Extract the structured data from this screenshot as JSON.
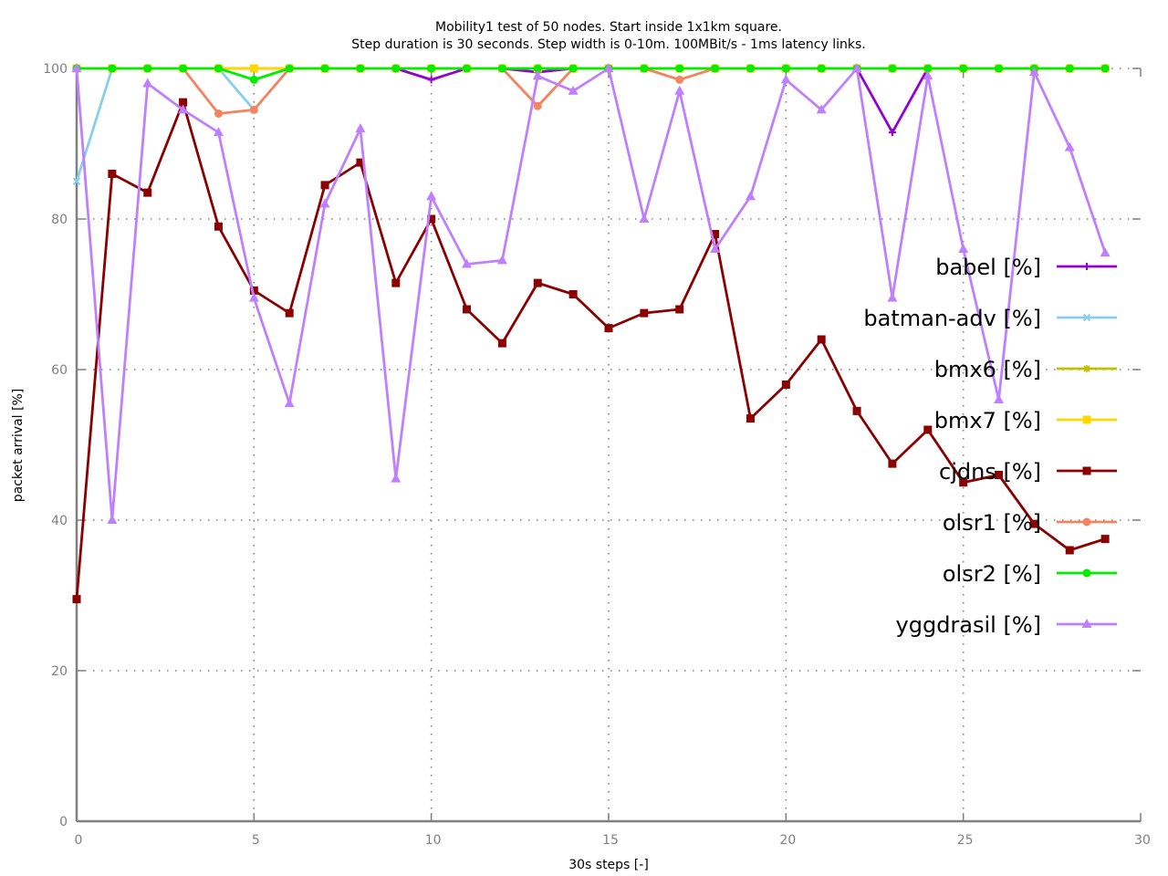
{
  "chart_data": {
    "type": "line",
    "title": [
      "Mobility1 test of 50 nodes. Start inside 1x1km square.",
      "Step duration is 30 seconds. Step width is 0-10m. 100MBit/s - 1ms latency links."
    ],
    "xlabel": "30s steps [-]",
    "ylabel": "packet arrival [%]",
    "xlim": [
      0,
      30
    ],
    "ylim": [
      0,
      100
    ],
    "x_ticks": [
      "0",
      "5",
      "10",
      "15",
      "20",
      "25",
      "30"
    ],
    "y_ticks": [
      "0",
      "20",
      "40",
      "60",
      "80",
      "100"
    ],
    "grid": true,
    "legend_position": "right",
    "series": [
      {
        "name": "babel [%]",
        "color": "#9400d3",
        "marker": "plus",
        "x": [
          0,
          1,
          2,
          3,
          4,
          5,
          6,
          7,
          8,
          9,
          10,
          11,
          12,
          13,
          14,
          15,
          16,
          17,
          18,
          19,
          20,
          21,
          22,
          23,
          24,
          25,
          26,
          27,
          28,
          29
        ],
        "y": [
          100,
          100,
          100,
          100,
          100,
          100,
          100,
          100,
          100,
          100,
          98.5,
          100,
          100,
          99.5,
          100,
          100,
          100,
          100,
          100,
          100,
          100,
          100,
          100,
          91.5,
          100,
          100,
          100,
          100,
          100,
          100
        ]
      },
      {
        "name": "batman-adv [%]",
        "color": "#87ceeb",
        "marker": "cross",
        "x": [
          0,
          1,
          2,
          3,
          4,
          5,
          6,
          7,
          8,
          9,
          10,
          11,
          12,
          13,
          14,
          15,
          16,
          17,
          18,
          19,
          20,
          21,
          22,
          23,
          24,
          25,
          26,
          27,
          28,
          29
        ],
        "y": [
          85,
          100,
          100,
          100,
          100,
          94.5,
          100,
          100,
          100,
          100,
          100,
          100,
          100,
          100,
          100,
          100,
          100,
          100,
          100,
          100,
          100,
          100,
          100,
          100,
          100,
          100,
          100,
          100,
          100,
          100
        ]
      },
      {
        "name": "bmx6 [%]",
        "color": "#c0c000",
        "marker": "star",
        "x": [
          0,
          1,
          2,
          3,
          4,
          5,
          6,
          7,
          8,
          9,
          10,
          11,
          12,
          13,
          14,
          15,
          16,
          17,
          18,
          19,
          20,
          21,
          22,
          23,
          24,
          25,
          26,
          27,
          28,
          29
        ],
        "y": [
          100,
          100,
          100,
          100,
          100,
          100,
          100,
          100,
          100,
          100,
          100,
          100,
          100,
          100,
          100,
          100,
          100,
          100,
          100,
          100,
          100,
          100,
          100,
          100,
          100,
          100,
          100,
          100,
          100,
          100
        ]
      },
      {
        "name": "bmx7 [%]",
        "color": "#ffd700",
        "marker": "square",
        "x": [
          0,
          1,
          2,
          3,
          4,
          5,
          6,
          7,
          8,
          9,
          10,
          11,
          12,
          13,
          14,
          15,
          16,
          17,
          18,
          19,
          20,
          21,
          22,
          23,
          24,
          25,
          26,
          27,
          28,
          29
        ],
        "y": [
          100,
          100,
          100,
          100,
          100,
          100,
          100,
          100,
          100,
          100,
          100,
          100,
          100,
          100,
          100,
          100,
          100,
          100,
          100,
          100,
          100,
          100,
          100,
          100,
          100,
          100,
          100,
          100,
          100,
          100
        ]
      },
      {
        "name": "cjdns [%]",
        "color": "#8b0000",
        "marker": "square",
        "x": [
          0,
          1,
          2,
          3,
          4,
          5,
          6,
          7,
          8,
          9,
          10,
          11,
          12,
          13,
          14,
          15,
          16,
          17,
          18,
          19,
          20,
          21,
          22,
          23,
          24,
          25,
          26,
          27,
          28,
          29
        ],
        "y": [
          29.5,
          86,
          83.5,
          95.5,
          79,
          70.5,
          67.5,
          84.5,
          87.5,
          71.5,
          80,
          68,
          63.5,
          71.5,
          70,
          65.5,
          67.5,
          68,
          78,
          53.5,
          58,
          64,
          54.5,
          47.5,
          52,
          45,
          46,
          39.5,
          36,
          37.5
        ]
      },
      {
        "name": "olsr1 [%]",
        "color": "#f4845f",
        "marker": "circle",
        "x": [
          0,
          1,
          2,
          3,
          4,
          5,
          6,
          7,
          8,
          9,
          10,
          11,
          12,
          13,
          14,
          15,
          16,
          17,
          18,
          19,
          20,
          21,
          22,
          23,
          24,
          25,
          26,
          27,
          28,
          29
        ],
        "y": [
          100,
          100,
          100,
          100,
          94,
          94.5,
          100,
          100,
          100,
          100,
          100,
          100,
          100,
          95,
          100,
          100,
          100,
          98.5,
          100,
          100,
          100,
          100,
          100,
          100,
          100,
          100,
          100,
          100,
          100,
          100
        ]
      },
      {
        "name": "olsr2 [%]",
        "color": "#00ee00",
        "marker": "circle",
        "x": [
          0,
          1,
          2,
          3,
          4,
          5,
          6,
          7,
          8,
          9,
          10,
          11,
          12,
          13,
          14,
          15,
          16,
          17,
          18,
          19,
          20,
          21,
          22,
          23,
          24,
          25,
          26,
          27,
          28,
          29
        ],
        "y": [
          100,
          100,
          100,
          100,
          100,
          98.5,
          100,
          100,
          100,
          100,
          100,
          100,
          100,
          100,
          100,
          100,
          100,
          100,
          100,
          100,
          100,
          100,
          100,
          100,
          100,
          100,
          100,
          100,
          100,
          100
        ]
      },
      {
        "name": "yggdrasil [%]",
        "color": "#bf80ff",
        "marker": "triangle",
        "x": [
          0,
          1,
          2,
          3,
          4,
          5,
          6,
          7,
          8,
          9,
          10,
          11,
          12,
          13,
          14,
          15,
          16,
          17,
          18,
          19,
          20,
          21,
          22,
          23,
          24,
          25,
          26,
          27,
          28,
          29
        ],
        "y": [
          100,
          40,
          98,
          94.5,
          91.5,
          69.5,
          55.5,
          82,
          92,
          45.5,
          83,
          74,
          74.5,
          99,
          97,
          100,
          80,
          97,
          76,
          83,
          98.5,
          94.5,
          100,
          69.5,
          99,
          76,
          56,
          99.5,
          89.5,
          75.5
        ]
      }
    ]
  }
}
